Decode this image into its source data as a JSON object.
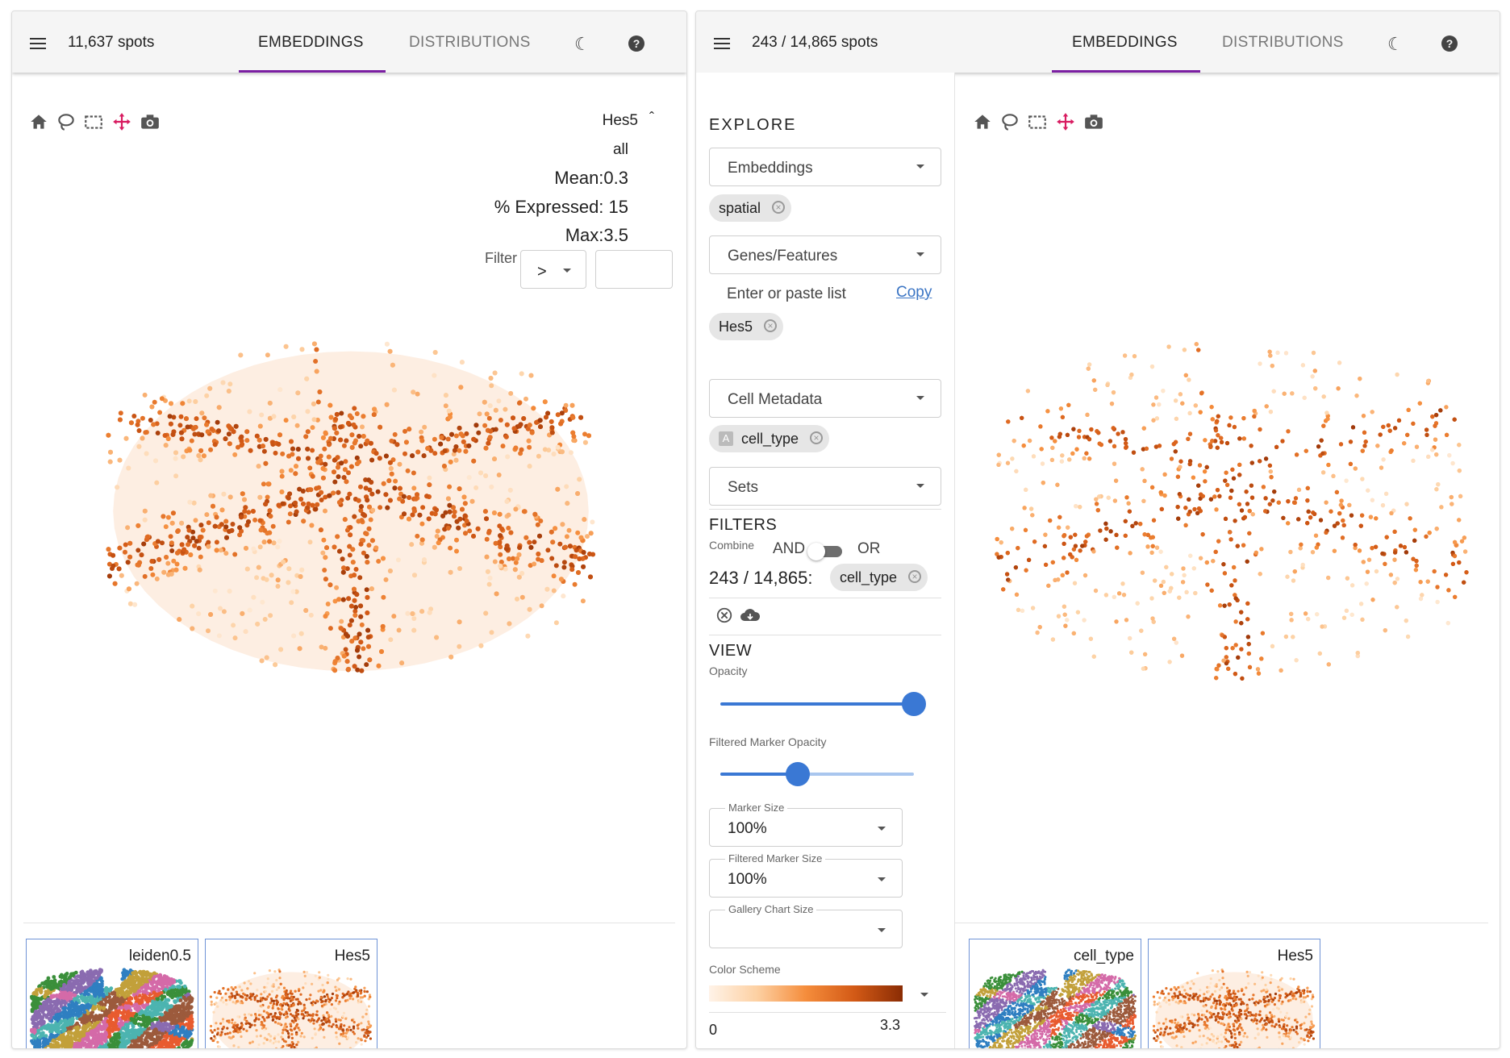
{
  "left_panel": {
    "spots_label": "11,637 spots",
    "tabs": [
      {
        "label": "EMBEDDINGS",
        "active": true
      },
      {
        "label": "DISTRIBUTIONS",
        "active": false
      }
    ],
    "legend": {
      "feature": "Hes5",
      "group": "all",
      "mean": "Mean:0.3",
      "expressed": "% Expressed: 15",
      "max": "Max:3.5",
      "filter_label": "Filter",
      "filter_operator": ">",
      "filter_value": ""
    },
    "gallery": [
      {
        "label": "leiden0.5"
      },
      {
        "label": "Hes5"
      }
    ]
  },
  "right_panel": {
    "spots_label": "243 / 14,865 spots",
    "tabs": [
      {
        "label": "EMBEDDINGS",
        "active": true
      },
      {
        "label": "DISTRIBUTIONS",
        "active": false
      }
    ],
    "sidebar": {
      "explore_title": "EXPLORE",
      "embeddings_select": "Embeddings",
      "embeddings_chip": "spatial",
      "genes_select": "Genes/Features",
      "genes_input_placeholder": "Enter or paste list",
      "copy_link": "Copy",
      "genes_chip": "Hes5",
      "metadata_select": "Cell Metadata",
      "metadata_chip_badge": "A",
      "metadata_chip": "cell_type",
      "sets_select": "Sets",
      "filters_title": "FILTERS",
      "combine_label": "Combine",
      "and_label": "AND",
      "or_label": "OR",
      "filter_count": "243 / 14,865:",
      "filter_chip": "cell_type",
      "view_title": "VIEW",
      "opacity_label": "Opacity",
      "opacity_value": 1.0,
      "filtered_opacity_label": "Filtered Marker Opacity",
      "filtered_opacity_value": 0.4,
      "marker_size_label": "Marker Size",
      "marker_size_value": "100%",
      "filtered_marker_size_label": "Filtered Marker Size",
      "filtered_marker_size_value": "100%",
      "gallery_chart_size_label": "Gallery Chart Size",
      "gallery_chart_size_value": "",
      "color_scheme_label": "Color Scheme",
      "color_min": "0",
      "color_max": "3.3"
    },
    "gallery": [
      {
        "label": "cell_type"
      },
      {
        "label": "Hes5"
      }
    ]
  },
  "colors": {
    "accent_tab": "#7b1fa2",
    "slider": "#3a78d4",
    "link": "#3b75c4",
    "toolbar_active": "#d81b60",
    "scale_low": "#fff3e8",
    "scale_high": "#8a2c04"
  },
  "icons": [
    "menu-icon",
    "moon-icon",
    "help-icon",
    "home-icon",
    "lasso-icon",
    "select-icon",
    "pan-icon",
    "camera-icon",
    "close-icon",
    "download-icon",
    "chevron-up-icon"
  ]
}
